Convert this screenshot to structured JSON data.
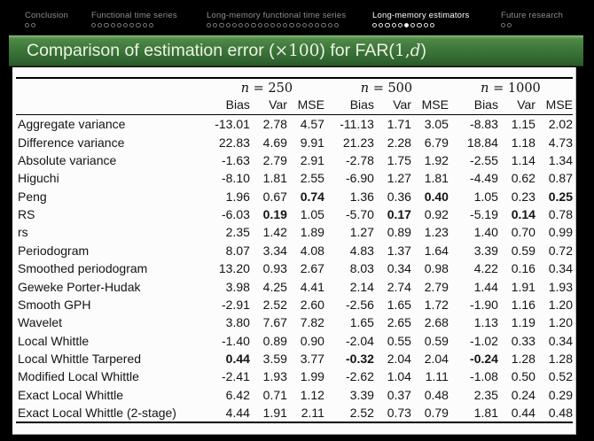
{
  "nav": {
    "sections": [
      {
        "label": "Conclusion",
        "dots": 2,
        "current": 0,
        "active": false
      },
      {
        "label": "Functional time series",
        "dots": 10,
        "current": 0,
        "active": false
      },
      {
        "label": "Long-memory functional time series",
        "dots": 21,
        "current": 0,
        "active": false
      },
      {
        "label": "Long-memory estimators",
        "dots": 10,
        "current": 6,
        "active": true
      },
      {
        "label": "Future research",
        "dots": 2,
        "current": 0,
        "active": false
      }
    ]
  },
  "frametitle": {
    "part1": "Comparison of estimation error (",
    "times": "×100",
    "part2": ") for FAR(",
    "arg_num": "1,",
    "arg_var": "d",
    "part3": ")"
  },
  "table": {
    "groups": [
      {
        "symbol": "n",
        "value": "= 250"
      },
      {
        "symbol": "n",
        "value": "= 500"
      },
      {
        "symbol": "n",
        "value": "= 1000"
      }
    ],
    "subheaders": [
      "Bias",
      "Var",
      "MSE"
    ],
    "rows": [
      {
        "label": "Aggregate variance",
        "values": [
          "-13.01",
          "2.78",
          "4.57",
          "-11.13",
          "1.71",
          "3.05",
          "-8.83",
          "1.15",
          "2.02"
        ],
        "bold": []
      },
      {
        "label": "Difference variance",
        "values": [
          "22.83",
          "4.69",
          "9.91",
          "21.23",
          "2.28",
          "6.79",
          "18.84",
          "1.18",
          "4.73"
        ],
        "bold": []
      },
      {
        "label": "Absolute variance",
        "values": [
          "-1.63",
          "2.79",
          "2.91",
          "-2.78",
          "1.75",
          "1.92",
          "-2.55",
          "1.14",
          "1.34"
        ],
        "bold": []
      },
      {
        "label": "Higuchi",
        "values": [
          "-8.10",
          "1.81",
          "2.55",
          "-6.90",
          "1.27",
          "1.81",
          "-4.49",
          "0.62",
          "0.87"
        ],
        "bold": []
      },
      {
        "label": "Peng",
        "values": [
          "1.96",
          "0.67",
          "0.74",
          "1.36",
          "0.36",
          "0.40",
          "1.05",
          "0.23",
          "0.25"
        ],
        "bold": [
          2,
          5,
          8
        ]
      },
      {
        "label": "RS",
        "values": [
          "-6.03",
          "0.19",
          "1.05",
          "-5.70",
          "0.17",
          "0.92",
          "-5.19",
          "0.14",
          "0.78"
        ],
        "bold": [
          1,
          4,
          7
        ]
      },
      {
        "label": "rs",
        "values": [
          "2.35",
          "1.42",
          "1.89",
          "1.27",
          "0.89",
          "1.23",
          "1.40",
          "0.70",
          "0.99"
        ],
        "bold": []
      },
      {
        "label": "Periodogram",
        "values": [
          "8.07",
          "3.34",
          "4.08",
          "4.83",
          "1.37",
          "1.64",
          "3.39",
          "0.59",
          "0.72"
        ],
        "bold": []
      },
      {
        "label": "Smoothed periodogram",
        "values": [
          "13.20",
          "0.93",
          "2.67",
          "8.03",
          "0.34",
          "0.98",
          "4.22",
          "0.16",
          "0.34"
        ],
        "bold": []
      },
      {
        "label": "Geweke Porter-Hudak",
        "values": [
          "3.98",
          "4.25",
          "4.41",
          "2.14",
          "2.74",
          "2.79",
          "1.44",
          "1.91",
          "1.93"
        ],
        "bold": []
      },
      {
        "label": "Smooth GPH",
        "values": [
          "-2.91",
          "2.52",
          "2.60",
          "-2.56",
          "1.65",
          "1.72",
          "-1.90",
          "1.16",
          "1.20"
        ],
        "bold": []
      },
      {
        "label": "Wavelet",
        "values": [
          "3.80",
          "7.67",
          "7.82",
          "1.65",
          "2.65",
          "2.68",
          "1.13",
          "1.19",
          "1.20"
        ],
        "bold": []
      },
      {
        "label": "Local Whittle",
        "values": [
          "-1.40",
          "0.89",
          "0.90",
          "-2.04",
          "0.55",
          "0.59",
          "-1.02",
          "0.33",
          "0.34"
        ],
        "bold": []
      },
      {
        "label": "Local Whittle Tarpered",
        "values": [
          "0.44",
          "3.59",
          "3.77",
          "-0.32",
          "2.04",
          "2.04",
          "-0.24",
          "1.28",
          "1.28"
        ],
        "bold": [
          0,
          3,
          6
        ]
      },
      {
        "label": "Modified Local Whittle",
        "values": [
          "-2.41",
          "1.93",
          "1.99",
          "-2.62",
          "1.04",
          "1.11",
          "-1.08",
          "0.50",
          "0.52"
        ],
        "bold": []
      },
      {
        "label": "Exact Local Whittle",
        "values": [
          "6.42",
          "0.71",
          "1.12",
          "3.39",
          "0.37",
          "0.48",
          "2.35",
          "0.24",
          "0.29"
        ],
        "bold": []
      },
      {
        "label": "Exact Local Whittle (2-stage)",
        "values": [
          "4.44",
          "1.91",
          "2.11",
          "2.52",
          "0.73",
          "0.79",
          "1.81",
          "0.44",
          "0.48"
        ],
        "bold": []
      }
    ]
  },
  "colors": {
    "background": "#000000",
    "frametitle_green_top": "#4e8947",
    "frametitle_green_bottom": "#295829",
    "frametitle_text": "#edf2e7",
    "nav_inactive_text": "#8d8d8d",
    "nav_active_text": "#fdfdfd",
    "panel_background": "#fcfcfc",
    "table_text": "#141414"
  }
}
